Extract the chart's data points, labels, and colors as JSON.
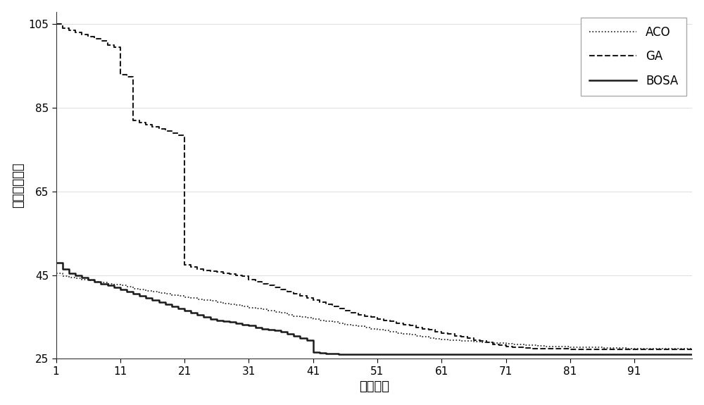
{
  "title": "",
  "xlabel": "迭代次数",
  "ylabel": "最优路径长度",
  "xlim": [
    1,
    100
  ],
  "ylim": [
    25,
    108
  ],
  "yticks": [
    25,
    45,
    65,
    85,
    105
  ],
  "xticks": [
    1,
    11,
    21,
    31,
    41,
    51,
    61,
    71,
    81,
    91
  ],
  "background_color": "#ffffff",
  "ACO": {
    "x": [
      1,
      2,
      3,
      4,
      5,
      6,
      7,
      8,
      9,
      10,
      11,
      12,
      13,
      14,
      15,
      16,
      17,
      18,
      19,
      20,
      21,
      22,
      23,
      24,
      25,
      26,
      27,
      28,
      29,
      30,
      31,
      32,
      33,
      34,
      35,
      36,
      37,
      38,
      39,
      40,
      41,
      42,
      43,
      44,
      45,
      46,
      47,
      48,
      49,
      50,
      51,
      52,
      53,
      54,
      55,
      56,
      57,
      58,
      59,
      60,
      61,
      62,
      63,
      64,
      65,
      66,
      67,
      68,
      69,
      70,
      71,
      72,
      73,
      74,
      75,
      76,
      77,
      78,
      79,
      80,
      81,
      82,
      83,
      84,
      85,
      86,
      87,
      88,
      89,
      90,
      91,
      92,
      93,
      94,
      95,
      96,
      97,
      98,
      99,
      100
    ],
    "y": [
      45.5,
      44.8,
      44.5,
      44.2,
      44.0,
      43.8,
      43.5,
      43.2,
      43.0,
      42.8,
      42.5,
      42.2,
      41.8,
      41.5,
      41.2,
      41.0,
      40.8,
      40.5,
      40.2,
      40.0,
      39.8,
      39.5,
      39.2,
      39.0,
      38.8,
      38.5,
      38.2,
      38.0,
      37.8,
      37.5,
      37.2,
      37.0,
      36.8,
      36.5,
      36.2,
      36.0,
      35.5,
      35.2,
      35.0,
      34.8,
      34.5,
      34.2,
      34.0,
      33.8,
      33.5,
      33.2,
      33.0,
      32.8,
      32.5,
      32.2,
      32.0,
      31.8,
      31.5,
      31.2,
      31.0,
      30.8,
      30.5,
      30.3,
      30.0,
      29.8,
      29.6,
      29.5,
      29.4,
      29.3,
      29.2,
      29.1,
      29.0,
      28.9,
      28.8,
      28.7,
      28.6,
      28.5,
      28.4,
      28.3,
      28.2,
      28.1,
      28.0,
      28.0,
      27.9,
      27.9,
      27.8,
      27.8,
      27.7,
      27.7,
      27.7,
      27.6,
      27.6,
      27.6,
      27.6,
      27.5,
      27.5,
      27.5,
      27.5,
      27.5,
      27.5,
      27.5,
      27.5,
      27.5,
      27.5,
      27.5
    ]
  },
  "GA": {
    "x": [
      1,
      2,
      3,
      4,
      5,
      6,
      7,
      8,
      9,
      10,
      11,
      12,
      13,
      14,
      15,
      16,
      17,
      18,
      19,
      20,
      21,
      22,
      23,
      24,
      25,
      26,
      27,
      28,
      29,
      30,
      31,
      32,
      33,
      34,
      35,
      36,
      37,
      38,
      39,
      40,
      41,
      42,
      43,
      44,
      45,
      46,
      47,
      48,
      49,
      50,
      51,
      52,
      53,
      54,
      55,
      56,
      57,
      58,
      59,
      60,
      61,
      62,
      63,
      64,
      65,
      66,
      67,
      68,
      69,
      70,
      71,
      72,
      73,
      74,
      75,
      76,
      77,
      78,
      79,
      80,
      81,
      82,
      83,
      84,
      85,
      86,
      87,
      88,
      89,
      90,
      91,
      92,
      93,
      94,
      95,
      96,
      97,
      98,
      99,
      100
    ],
    "y": [
      105.0,
      104.0,
      103.5,
      103.0,
      102.5,
      102.0,
      101.5,
      101.0,
      100.0,
      99.5,
      93.0,
      92.5,
      82.0,
      81.5,
      81.0,
      80.5,
      80.0,
      79.5,
      79.0,
      78.5,
      47.5,
      47.0,
      46.5,
      46.2,
      46.0,
      45.8,
      45.5,
      45.2,
      45.0,
      44.8,
      44.0,
      43.5,
      43.0,
      42.5,
      42.0,
      41.5,
      41.0,
      40.5,
      40.0,
      39.5,
      39.0,
      38.5,
      38.0,
      37.5,
      37.0,
      36.5,
      36.0,
      35.5,
      35.2,
      35.0,
      34.5,
      34.2,
      34.0,
      33.5,
      33.2,
      33.0,
      32.5,
      32.2,
      32.0,
      31.5,
      31.2,
      31.0,
      30.5,
      30.2,
      30.0,
      29.5,
      29.2,
      29.0,
      28.5,
      28.2,
      28.0,
      27.8,
      27.7,
      27.6,
      27.5,
      27.5,
      27.5,
      27.4,
      27.4,
      27.4,
      27.3,
      27.3,
      27.3,
      27.3,
      27.3,
      27.3,
      27.3,
      27.3,
      27.3,
      27.3,
      27.3,
      27.3,
      27.3,
      27.3,
      27.3,
      27.3,
      27.3,
      27.3,
      27.3,
      27.3
    ]
  },
  "BOSA": {
    "x": [
      1,
      2,
      3,
      4,
      5,
      6,
      7,
      8,
      9,
      10,
      11,
      12,
      13,
      14,
      15,
      16,
      17,
      18,
      19,
      20,
      21,
      22,
      23,
      24,
      25,
      26,
      27,
      28,
      29,
      30,
      31,
      32,
      33,
      34,
      35,
      36,
      37,
      38,
      39,
      40,
      41,
      42,
      43,
      44,
      45,
      46,
      47,
      48,
      49,
      50,
      51,
      52,
      53,
      54,
      55,
      56,
      57,
      58,
      59,
      60,
      61,
      62,
      63,
      64,
      65,
      66,
      67,
      68,
      69,
      70,
      71,
      72,
      73,
      74,
      75,
      76,
      77,
      78,
      79,
      80,
      81,
      82,
      83,
      84,
      85,
      86,
      87,
      88,
      89,
      90,
      91,
      92,
      93,
      94,
      95,
      96,
      97,
      98,
      99,
      100
    ],
    "y": [
      48.0,
      46.5,
      45.5,
      45.0,
      44.5,
      44.0,
      43.5,
      43.0,
      42.5,
      42.0,
      41.5,
      41.0,
      40.5,
      40.0,
      39.5,
      39.0,
      38.5,
      38.0,
      37.5,
      37.0,
      36.5,
      36.0,
      35.5,
      35.0,
      34.5,
      34.2,
      34.0,
      33.8,
      33.5,
      33.2,
      33.0,
      32.5,
      32.2,
      32.0,
      31.8,
      31.5,
      31.0,
      30.5,
      30.0,
      29.5,
      26.5,
      26.4,
      26.3,
      26.2,
      26.1,
      26.0,
      26.0,
      26.0,
      26.0,
      26.0,
      26.0,
      26.0,
      26.0,
      26.0,
      26.0,
      26.0,
      26.0,
      26.0,
      26.0,
      26.0,
      26.0,
      26.0,
      26.0,
      26.0,
      26.0,
      26.0,
      26.0,
      26.0,
      26.0,
      26.0,
      26.0,
      26.0,
      26.0,
      26.0,
      26.0,
      26.0,
      26.0,
      26.0,
      26.0,
      26.0,
      26.0,
      26.0,
      26.0,
      26.0,
      26.0,
      26.0,
      26.0,
      26.0,
      26.0,
      26.0,
      26.0,
      26.0,
      26.0,
      26.0,
      26.0,
      26.0,
      26.0,
      26.0,
      26.0,
      26.0
    ]
  },
  "line_color": "#1a1a1a",
  "font_size_label": 13,
  "font_size_tick": 11,
  "font_size_legend": 12
}
